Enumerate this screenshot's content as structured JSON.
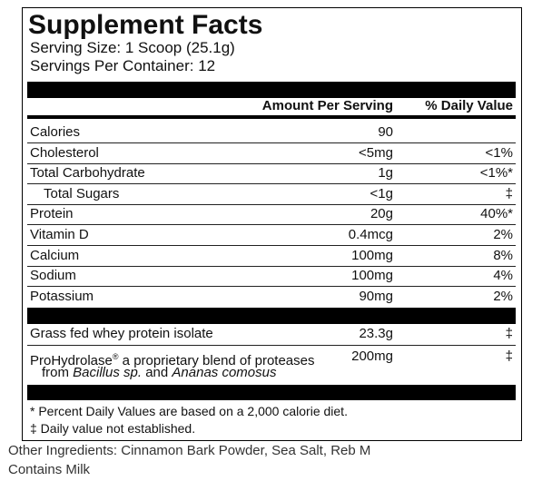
{
  "title": "Supplement Facts",
  "serving_size": "Serving Size: 1 Scoop (25.1g)",
  "servings_per_container": "Servings Per Container: 12",
  "header": {
    "amount": "Amount Per Serving",
    "daily_value": "% Daily Value"
  },
  "nutrients": [
    {
      "name": "Calories",
      "amount": "90"
    },
    {
      "name": "Cholesterol",
      "amount": "<5mg",
      "dv": "<1%"
    },
    {
      "name": "Total Carbohydrate",
      "amount": "1g",
      "dv": "<1%*"
    },
    {
      "name": "Total Sugars",
      "amount": "<1g",
      "dv": "‡"
    },
    {
      "name": "Protein",
      "amount": "20g",
      "dv": "40%*"
    },
    {
      "name": "Vitamin D",
      "amount": "0.4mcg",
      "dv": "2%"
    },
    {
      "name": "Calcium",
      "amount": "100mg",
      "dv": "8%"
    },
    {
      "name": "Sodium",
      "amount": "100mg",
      "dv": "4%"
    },
    {
      "name": "Potassium",
      "amount": "90mg",
      "dv": "2%"
    }
  ],
  "ingredients": [
    {
      "name": "Grass fed whey protein isolate",
      "amount": "23.3g",
      "dv": "‡"
    },
    {
      "name_parts": [
        "ProHydrolase",
        "®",
        " a proprietary blend of proteases"
      ],
      "name_line2": [
        "from ",
        "Bacillus sp.",
        " and ",
        "Ananas comosus"
      ],
      "amount": "200mg",
      "dv": "‡"
    }
  ],
  "footnotes": [
    "* Percent Daily Values are based on a 2,000 calorie diet.",
    "‡ Daily value not established."
  ],
  "other_ingredients": "Other Ingredients: Cinnamon Bark Powder, Sea Salt, Reb M",
  "allergen": "Contains Milk"
}
